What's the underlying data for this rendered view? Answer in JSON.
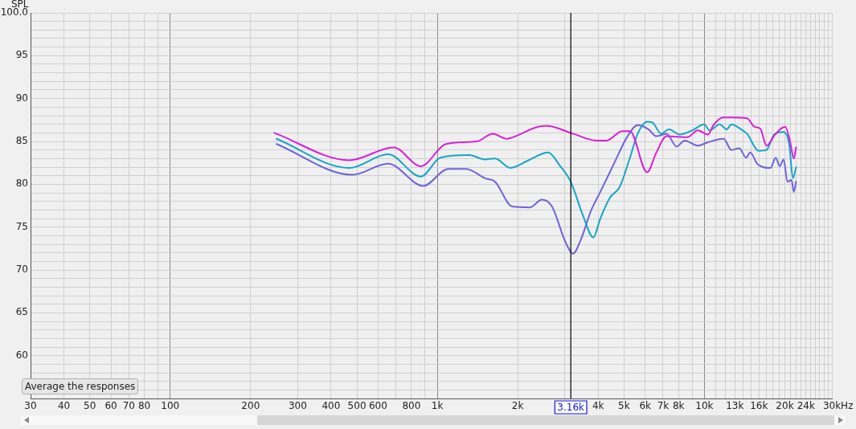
{
  "chart_data": {
    "type": "line",
    "ylabel": "SPL",
    "log": "x",
    "grid": true,
    "legend": false,
    "marker": "none",
    "line_style": "solid",
    "xlim": [
      30,
      30000
    ],
    "ylim": [
      55,
      100
    ],
    "xticks": [
      30,
      40,
      50,
      60,
      70,
      80,
      {
        "value": 90,
        "label": null
      },
      100,
      200,
      300,
      400,
      500,
      600,
      {
        "value": 700,
        "label": null
      },
      800,
      {
        "value": 900,
        "label": null
      },
      {
        "value": 1000,
        "label": "1k"
      },
      {
        "value": 2000,
        "label": "2k"
      },
      {
        "value": 3000,
        "label": null
      },
      {
        "value": 4000,
        "label": "4k"
      },
      {
        "value": 5000,
        "label": "5k"
      },
      {
        "value": 6000,
        "label": "6k"
      },
      {
        "value": 7000,
        "label": "7k"
      },
      {
        "value": 8000,
        "label": "8k"
      },
      {
        "value": 9000,
        "label": null
      },
      {
        "value": 10000,
        "label": "10k"
      },
      {
        "value": 11000,
        "label": null
      },
      {
        "value": 12000,
        "label": null
      },
      {
        "value": 13000,
        "label": "13k"
      },
      {
        "value": 14000,
        "label": null
      },
      {
        "value": 15000,
        "label": null
      },
      {
        "value": 16000,
        "label": "16k"
      },
      {
        "value": 17000,
        "label": null
      },
      {
        "value": 18000,
        "label": null
      },
      {
        "value": 19000,
        "label": null
      },
      {
        "value": 20000,
        "label": "20k"
      },
      {
        "value": 21000,
        "label": null
      },
      {
        "value": 22000,
        "label": null
      },
      {
        "value": 23000,
        "label": null
      },
      {
        "value": 24000,
        "label": "24k"
      },
      {
        "value": 25000,
        "label": null
      },
      {
        "value": 26000,
        "label": null
      },
      {
        "value": 27000,
        "label": null
      },
      {
        "value": 28000,
        "label": null
      },
      {
        "value": 29000,
        "label": null
      },
      {
        "value": 30000,
        "label": "30k"
      }
    ],
    "xlabel": "Hz",
    "yticks": [
      {
        "value": 55,
        "label": null
      },
      {
        "value": 56,
        "label": null
      },
      {
        "value": 57,
        "label": null
      },
      {
        "value": 58,
        "label": null
      },
      {
        "value": 59,
        "label": null
      },
      60,
      {
        "value": 61,
        "label": null
      },
      {
        "value": 62,
        "label": null
      },
      {
        "value": 63,
        "label": null
      },
      {
        "value": 64,
        "label": null
      },
      65,
      {
        "value": 66,
        "label": null
      },
      {
        "value": 67,
        "label": null
      },
      {
        "value": 68,
        "label": null
      },
      {
        "value": 69,
        "label": null
      },
      70,
      {
        "value": 71,
        "label": null
      },
      {
        "value": 72,
        "label": null
      },
      {
        "value": 73,
        "label": null
      },
      {
        "value": 74,
        "label": null
      },
      75,
      {
        "value": 76,
        "label": null
      },
      {
        "value": 77,
        "label": null
      },
      {
        "value": 78,
        "label": null
      },
      {
        "value": 79,
        "label": null
      },
      80,
      {
        "value": 81,
        "label": null
      },
      {
        "value": 82,
        "label": null
      },
      {
        "value": 83,
        "label": null
      },
      {
        "value": 84,
        "label": null
      },
      85,
      {
        "value": 86,
        "label": null
      },
      {
        "value": 87,
        "label": null
      },
      {
        "value": 88,
        "label": null
      },
      {
        "value": 89,
        "label": null
      },
      90,
      {
        "value": 91,
        "label": null
      },
      {
        "value": 92,
        "label": null
      },
      {
        "value": 93,
        "label": null
      },
      {
        "value": 94,
        "label": null
      },
      95,
      {
        "value": 96,
        "label": null
      },
      {
        "value": 97,
        "label": null
      },
      {
        "value": 98,
        "label": null
      },
      {
        "value": 99,
        "label": null
      },
      {
        "value": 100,
        "label": "100.0"
      }
    ],
    "ref_lines": [
      {
        "axis": "x",
        "value": 3160,
        "label": "3.16k",
        "color": "#000000"
      }
    ],
    "annotations": [
      "Average the responses"
    ],
    "series": [
      {
        "color": "#d81fd8",
        "x": [
          245,
          468,
          686,
          868,
          1077,
          1409,
          1611,
          1820,
          1880,
          2512,
          2580,
          3220,
          3945,
          4303,
          4920,
          5262,
          6098,
          6607,
          7211,
          8650,
          9446,
          10310,
          10810,
          11720,
          12620,
          14430,
          15420,
          16180,
          17070,
          18490,
          20060,
          20890,
          21600,
          22030
        ],
        "values": [
          86.0,
          82.8,
          84.3,
          82.1,
          84.7,
          85.0,
          85.9,
          85.3,
          85.4,
          86.8,
          86.8,
          85.9,
          85.1,
          85.1,
          86.2,
          86.2,
          81.4,
          83.7,
          85.6,
          85.5,
          86.3,
          85.8,
          86.9,
          87.8,
          87.8,
          87.7,
          86.7,
          86.5,
          84.5,
          85.9,
          86.7,
          85.1,
          83.0,
          84.3
        ]
      },
      {
        "color": "#14a6c6",
        "x": [
          250,
          468,
          654,
          868,
          1027,
          1318,
          1507,
          1645,
          1880,
          2196,
          2600,
          2872,
          3158,
          3515,
          3837,
          4076,
          4420,
          4819,
          5262,
          5626,
          6098,
          6392,
          6886,
          7362,
          8090,
          9016,
          9977,
          10450,
          11410,
          12110,
          12620,
          13870,
          14430,
          15960,
          17070,
          18240,
          19780,
          20750,
          21450,
          22030
        ],
        "values": [
          85.3,
          81.9,
          83.5,
          80.9,
          83.1,
          83.4,
          82.9,
          83.0,
          81.9,
          82.8,
          83.7,
          82.2,
          80.3,
          76.3,
          73.8,
          76.0,
          78.4,
          79.7,
          83.1,
          85.9,
          87.3,
          87.2,
          85.9,
          86.4,
          85.8,
          86.3,
          87.0,
          86.3,
          87.0,
          86.4,
          87.0,
          86.3,
          85.9,
          83.9,
          84.0,
          85.8,
          86.1,
          84.7,
          80.7,
          82.0
        ]
      },
      {
        "color": "#6f63d9",
        "x": [
          250,
          481,
          654,
          886,
          1099,
          1282,
          1507,
          1645,
          1906,
          2225,
          2461,
          2687,
          3013,
          3220,
          3443,
          3760,
          4076,
          4600,
          5155,
          5626,
          6182,
          6607,
          7211,
          7870,
          8427,
          9446,
          10310,
          11800,
          12620,
          13490,
          14330,
          14830,
          15850,
          17660,
          18490,
          19140,
          19780,
          20460,
          21180,
          21600,
          22030
        ],
        "values": [
          84.7,
          81.1,
          82.4,
          79.8,
          81.8,
          81.8,
          80.7,
          80.3,
          77.4,
          77.3,
          78.2,
          77.4,
          73.3,
          71.9,
          73.5,
          76.9,
          79.1,
          82.5,
          85.6,
          86.9,
          86.4,
          85.6,
          85.9,
          84.4,
          85.1,
          84.5,
          84.9,
          85.3,
          84.0,
          84.2,
          83.1,
          83.7,
          82.3,
          81.9,
          83.1,
          82.1,
          82.9,
          80.3,
          80.5,
          79.1,
          80.3
        ]
      }
    ]
  }
}
